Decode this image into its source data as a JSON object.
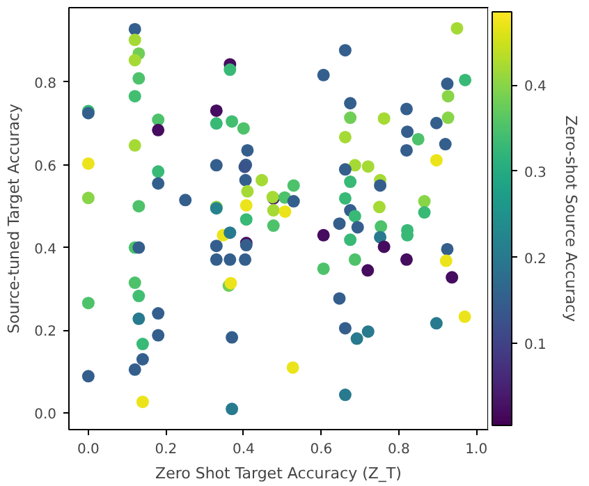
{
  "chart_data": {
    "type": "scatter",
    "xlabel": "Zero Shot Target Accuracy (Z_T)",
    "ylabel": "Source-tuned Target Accuracy",
    "clabel": "Zero-shot Source Accuracy",
    "xlim": [
      -0.05,
      1.03
    ],
    "ylim": [
      -0.04,
      0.98
    ],
    "xticks": [
      {
        "value": 0,
        "label": "0.0"
      },
      0.2,
      0.4,
      0.6,
      0.8,
      {
        "value": 1,
        "label": "1.0"
      }
    ],
    "yticks": [
      {
        "value": 0,
        "label": "0.0"
      },
      0.2,
      0.4,
      0.6,
      0.8
    ],
    "clim": [
      0.005,
      0.485
    ],
    "cticks": [
      0.1,
      0.2,
      0.3,
      0.4
    ],
    "marker": "circle",
    "grid": false,
    "x": [
      0.0,
      0.0,
      0.0,
      0.0,
      0.0,
      0.0,
      0.12,
      0.12,
      0.13,
      0.12,
      0.13,
      0.12,
      0.12,
      0.13,
      0.12,
      0.13,
      0.12,
      0.13,
      0.13,
      0.14,
      0.14,
      0.12,
      0.14,
      0.18,
      0.18,
      0.18,
      0.18,
      0.18,
      0.18,
      0.25,
      0.365,
      0.365,
      0.33,
      0.33,
      0.37,
      0.4,
      0.41,
      0.33,
      0.406,
      0.403,
      0.447,
      0.405,
      0.41,
      0.33,
      0.33,
      0.407,
      0.407,
      0.347,
      0.365,
      0.33,
      0.33,
      0.365,
      0.404,
      0.407,
      0.407,
      0.362,
      0.367,
      0.37,
      0.37,
      0.95,
      0.662,
      0.606,
      0.925,
      0.971,
      0.927,
      0.675,
      0.675,
      0.762,
      0.82,
      0.927,
      0.897,
      0.822,
      0.85,
      0.662,
      0.82,
      0.92,
      0.897,
      0.687,
      0.721,
      0.662,
      0.529,
      0.752,
      0.675,
      0.752,
      0.477,
      0.477,
      0.475,
      0.506,
      0.529,
      0.507,
      0.662,
      0.675,
      0.687,
      0.75,
      0.866,
      0.866,
      0.477,
      0.647,
      0.694,
      0.754,
      0.822,
      0.606,
      0.675,
      0.752,
      0.762,
      0.822,
      0.925,
      0.922,
      0.82,
      0.687,
      0.72,
      0.606,
      0.937,
      0.647,
      0.97,
      0.897,
      0.662,
      0.721,
      0.692,
      0.527,
      0.662
    ],
    "values": [
      0.73,
      0.725,
      0.603,
      0.52,
      0.266,
      0.089,
      0.928,
      0.902,
      0.869,
      0.853,
      0.809,
      0.766,
      0.647,
      0.5,
      0.4,
      0.4,
      0.315,
      0.283,
      0.228,
      0.167,
      0.13,
      0.105,
      0.027,
      0.709,
      0.684,
      0.584,
      0.555,
      0.241,
      0.188,
      0.515,
      0.843,
      0.83,
      0.731,
      0.7,
      0.705,
      0.688,
      0.635,
      0.599,
      0.6,
      0.595,
      0.563,
      0.563,
      0.536,
      0.498,
      0.495,
      0.502,
      0.468,
      0.43,
      0.436,
      0.404,
      0.371,
      0.371,
      0.371,
      0.411,
      0.406,
      0.308,
      0.314,
      0.183,
      0.01,
      0.93,
      0.877,
      0.817,
      0.796,
      0.805,
      0.766,
      0.749,
      0.714,
      0.712,
      0.735,
      0.714,
      0.701,
      0.68,
      0.662,
      0.667,
      0.635,
      0.65,
      0.611,
      0.599,
      0.596,
      0.589,
      0.55,
      0.563,
      0.559,
      0.55,
      0.519,
      0.49,
      0.522,
      0.521,
      0.512,
      0.487,
      0.519,
      0.49,
      0.476,
      0.498,
      0.512,
      0.485,
      0.453,
      0.458,
      0.449,
      0.451,
      0.442,
      0.43,
      0.419,
      0.425,
      0.402,
      0.43,
      0.396,
      0.368,
      0.371,
      0.371,
      0.345,
      0.349,
      0.328,
      0.277,
      0.233,
      0.217,
      0.205,
      0.197,
      0.18,
      0.11,
      0.044
    ],
    "cvalues": [
      0.33,
      0.15,
      0.47,
      0.4,
      0.35,
      0.15,
      0.15,
      0.42,
      0.38,
      0.42,
      0.35,
      0.34,
      0.42,
      0.35,
      0.35,
      0.15,
      0.35,
      0.34,
      0.2,
      0.33,
      0.15,
      0.15,
      0.47,
      0.35,
      0.02,
      0.33,
      0.15,
      0.15,
      0.15,
      0.15,
      0.02,
      0.33,
      0.02,
      0.33,
      0.34,
      0.35,
      0.15,
      0.15,
      0.15,
      0.13,
      0.42,
      0.15,
      0.42,
      0.4,
      0.22,
      0.47,
      0.33,
      0.47,
      0.2,
      0.15,
      0.15,
      0.15,
      0.15,
      0.02,
      0.15,
      0.38,
      0.47,
      0.15,
      0.2,
      0.42,
      0.15,
      0.15,
      0.15,
      0.33,
      0.4,
      0.15,
      0.38,
      0.42,
      0.15,
      0.4,
      0.15,
      0.15,
      0.35,
      0.42,
      0.15,
      0.15,
      0.47,
      0.42,
      0.42,
      0.15,
      0.35,
      0.42,
      0.33,
      0.15,
      0.03,
      0.42,
      0.42,
      0.35,
      0.15,
      0.47,
      0.33,
      0.15,
      0.33,
      0.42,
      0.4,
      0.33,
      0.35,
      0.15,
      0.15,
      0.35,
      0.33,
      0.02,
      0.33,
      0.2,
      0.02,
      0.33,
      0.15,
      0.47,
      0.02,
      0.35,
      0.02,
      0.35,
      0.02,
      0.15,
      0.47,
      0.2,
      0.15,
      0.2,
      0.2,
      0.47,
      0.2
    ]
  }
}
